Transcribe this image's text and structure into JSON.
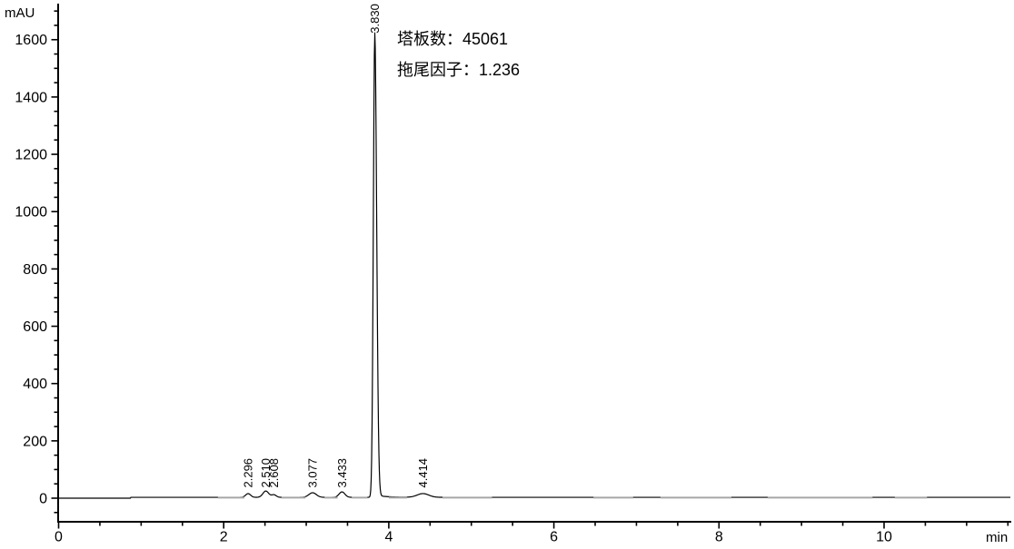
{
  "chart_data": {
    "type": "line",
    "title": "",
    "description": "HPLC chromatogram, single dominant peak at 3.830 min",
    "x_unit": "min",
    "y_unit": "mAU",
    "x_axis": {
      "min": 0,
      "max": 11.5,
      "major_tick_step": 2,
      "minor_tick_step": 0.5,
      "major_tick_labels": [
        "0",
        "2",
        "4",
        "6",
        "8",
        "10"
      ]
    },
    "y_axis": {
      "display_min": -80,
      "display_max": 1725,
      "major_tick_step": 200,
      "minor_tick_step": 50,
      "major_tick_labels": [
        "0",
        "200",
        "400",
        "600",
        "800",
        "1000",
        "1200",
        "1400",
        "1600"
      ]
    },
    "baseline": {
      "start_level_mAU": 0,
      "step_at_min": 0.87,
      "post_step_level_mAU": 3,
      "trace_start_min": 0,
      "trace_end_min": 11.53
    },
    "peaks": [
      {
        "label": "2.296",
        "rt_min": 2.296,
        "height_mAU": 13,
        "sigma_min": 0.03
      },
      {
        "label": "2.510",
        "rt_min": 2.51,
        "height_mAU": 22,
        "sigma_min": 0.035
      },
      {
        "label": "2.608",
        "rt_min": 2.608,
        "height_mAU": 9,
        "sigma_min": 0.028
      },
      {
        "label": "3.077",
        "rt_min": 3.077,
        "height_mAU": 16,
        "sigma_min": 0.045
      },
      {
        "label": "3.433",
        "rt_min": 3.433,
        "height_mAU": 19,
        "sigma_min": 0.035
      },
      {
        "label": "3.830",
        "rt_min": 3.83,
        "height_mAU": 1613,
        "sigma_min": 0.017,
        "main": true,
        "sigma_right_min": 0.023,
        "tail_mAU": 8,
        "tail_tau_min": 0.13
      },
      {
        "label": "4.414",
        "rt_min": 4.414,
        "height_mAU": 13,
        "sigma_min": 0.07
      }
    ],
    "annotations": {
      "plates": "塔板数：45061",
      "tailing": "拖尾因子：1.236"
    },
    "integration_marks_min": [
      [
        1.93,
        2.25
      ],
      [
        2.7,
        2.99
      ],
      [
        3.22,
        3.38
      ],
      [
        3.55,
        3.74
      ],
      [
        4.0,
        4.22
      ],
      [
        4.65,
        5.25
      ],
      [
        6.48,
        6.96
      ],
      [
        7.29,
        8.15
      ],
      [
        8.59,
        9.86
      ],
      [
        10.13,
        10.52
      ]
    ],
    "colors": {
      "trace": "#000000",
      "axis": "#000000",
      "text": "#000000",
      "integration_mark": "#a6a6a6",
      "background": "#ffffff"
    }
  }
}
